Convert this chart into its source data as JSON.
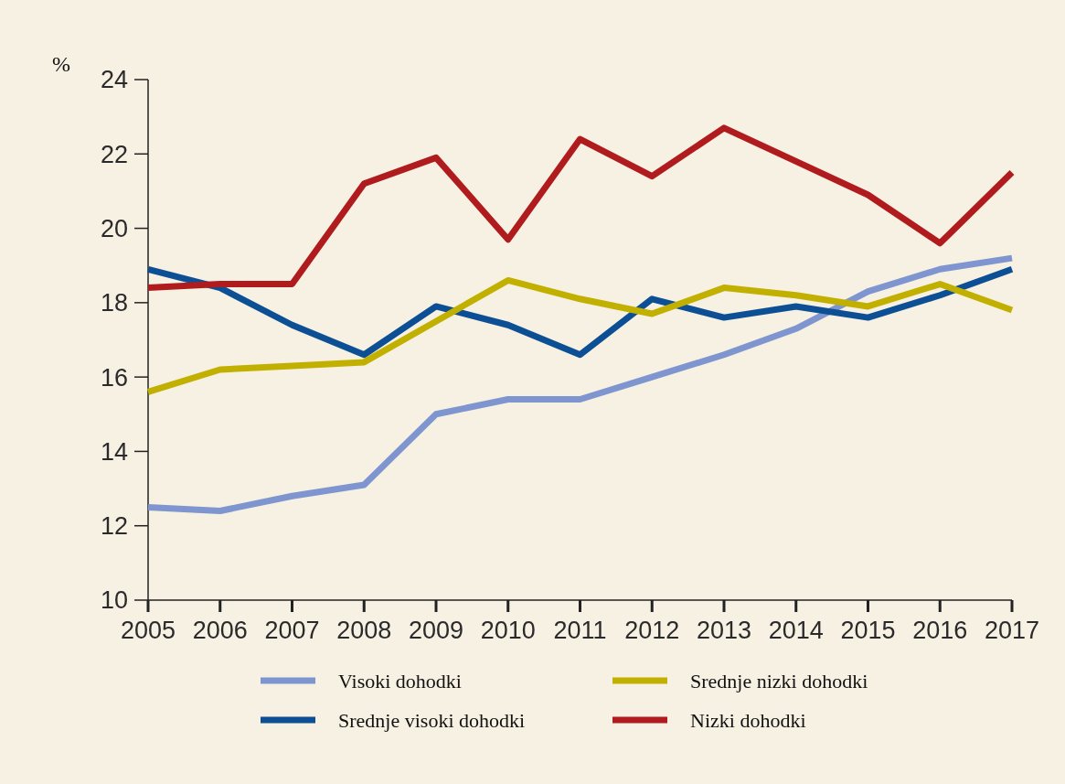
{
  "chart_data": {
    "type": "line",
    "ylabel": "%",
    "categories": [
      "2005",
      "2006",
      "2007",
      "2008",
      "2009",
      "2010",
      "2011",
      "2012",
      "2013",
      "2014",
      "2015",
      "2016",
      "2017"
    ],
    "series": [
      {
        "name": "Visoki dohodki",
        "color": "#7f95cf",
        "values": [
          12.5,
          12.4,
          12.8,
          13.1,
          15.0,
          15.4,
          15.4,
          16.0,
          16.6,
          17.3,
          18.3,
          18.9,
          19.2
        ]
      },
      {
        "name": "Srednje visoki dohodki",
        "color": "#0d4f94",
        "values": [
          18.9,
          18.4,
          17.4,
          16.6,
          17.9,
          17.4,
          16.6,
          18.1,
          17.6,
          17.9,
          17.6,
          18.2,
          18.9
        ]
      },
      {
        "name": "Srednje nizki dohodki",
        "color": "#c2b000",
        "values": [
          15.6,
          16.2,
          16.3,
          16.4,
          17.5,
          18.6,
          18.1,
          17.7,
          18.4,
          18.2,
          17.9,
          18.5,
          17.8
        ]
      },
      {
        "name": "Nizki dohodki",
        "color": "#b01c1e",
        "values": [
          18.4,
          18.5,
          18.5,
          21.2,
          21.9,
          19.7,
          22.4,
          21.4,
          22.7,
          21.8,
          20.9,
          19.6,
          21.5
        ]
      }
    ],
    "ylim": [
      10,
      24
    ],
    "yticks": [
      10,
      12,
      14,
      16,
      18,
      20,
      22,
      24
    ],
    "grid": false,
    "legend": "bottom",
    "line_style": "solid",
    "marker": "none"
  }
}
